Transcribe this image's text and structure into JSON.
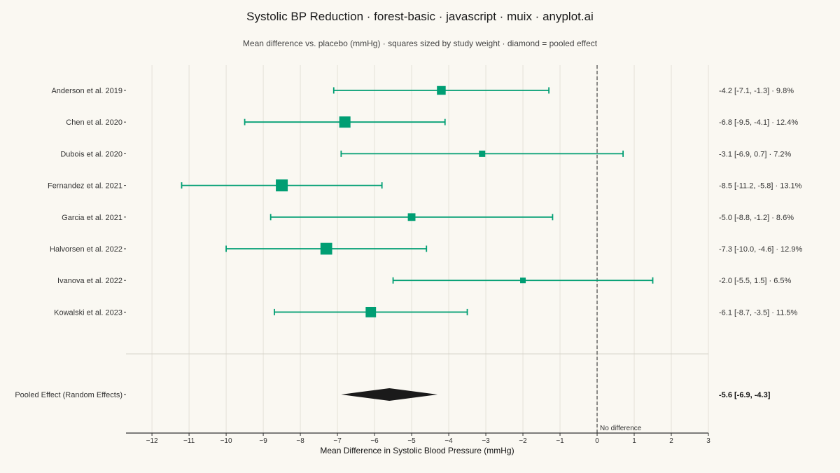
{
  "chart_data": {
    "type": "forest",
    "title": "Systolic BP Reduction · forest-basic · javascript · muix · anyplot.ai",
    "subtitle": "Mean difference vs. placebo (mmHg) · squares sized by study weight · diamond = pooled effect",
    "xlabel": "Mean Difference in Systolic Blood Pressure (mmHg)",
    "xlim": [
      -12.7,
      3
    ],
    "xticks": [
      -12,
      -11,
      -10,
      -9,
      -8,
      -7,
      -6,
      -5,
      -4,
      -3,
      -2,
      -1,
      0,
      1,
      2,
      3
    ],
    "tick_labels": [
      "−12",
      "−11",
      "−10",
      "−9",
      "−8",
      "−7",
      "−6",
      "−5",
      "−4",
      "−3",
      "−2",
      "−1",
      "0",
      "1",
      "2",
      "3"
    ],
    "reference_line": {
      "x": 0,
      "label": "No difference"
    },
    "grid": "vertical",
    "studies": [
      {
        "name": "Anderson et al. 2019",
        "estimate": -4.2,
        "lower": -7.1,
        "upper": -1.3,
        "weight": 9.8,
        "result_text": "-4.2 [-7.1, -1.3] · 9.8%"
      },
      {
        "name": "Chen et al. 2020",
        "estimate": -6.8,
        "lower": -9.5,
        "upper": -4.1,
        "weight": 12.4,
        "result_text": "-6.8 [-9.5, -4.1] · 12.4%"
      },
      {
        "name": "Dubois et al. 2020",
        "estimate": -3.1,
        "lower": -6.9,
        "upper": 0.7,
        "weight": 7.2,
        "result_text": "-3.1 [-6.9, 0.7] · 7.2%"
      },
      {
        "name": "Fernandez et al. 2021",
        "estimate": -8.5,
        "lower": -11.2,
        "upper": -5.8,
        "weight": 13.1,
        "result_text": "-8.5 [-11.2, -5.8] · 13.1%"
      },
      {
        "name": "Garcia et al. 2021",
        "estimate": -5.0,
        "lower": -8.8,
        "upper": -1.2,
        "weight": 8.6,
        "result_text": "-5.0 [-8.8, -1.2] · 8.6%"
      },
      {
        "name": "Halvorsen et al. 2022",
        "estimate": -7.3,
        "lower": -10.0,
        "upper": -4.6,
        "weight": 12.9,
        "result_text": "-7.3 [-10.0, -4.6] · 12.9%"
      },
      {
        "name": "Ivanova et al. 2022",
        "estimate": -2.0,
        "lower": -5.5,
        "upper": 1.5,
        "weight": 6.5,
        "result_text": "-2.0 [-5.5, 1.5] · 6.5%"
      },
      {
        "name": "Kowalski et al. 2023",
        "estimate": -6.1,
        "lower": -8.7,
        "upper": -3.5,
        "weight": 11.5,
        "result_text": "-6.1 [-8.7, -3.5] · 11.5%"
      }
    ],
    "pooled": {
      "name": "Pooled Effect (Random Effects)",
      "estimate": -5.6,
      "lower": -6.9,
      "upper": -4.3,
      "result_text": "-5.6 [-6.9, -4.3]"
    },
    "colors": {
      "study": "#009e73",
      "pooled": "#1a1a1a",
      "grid": "#e4e1d8",
      "axis": "#333333",
      "background": "#faf8f2"
    }
  }
}
